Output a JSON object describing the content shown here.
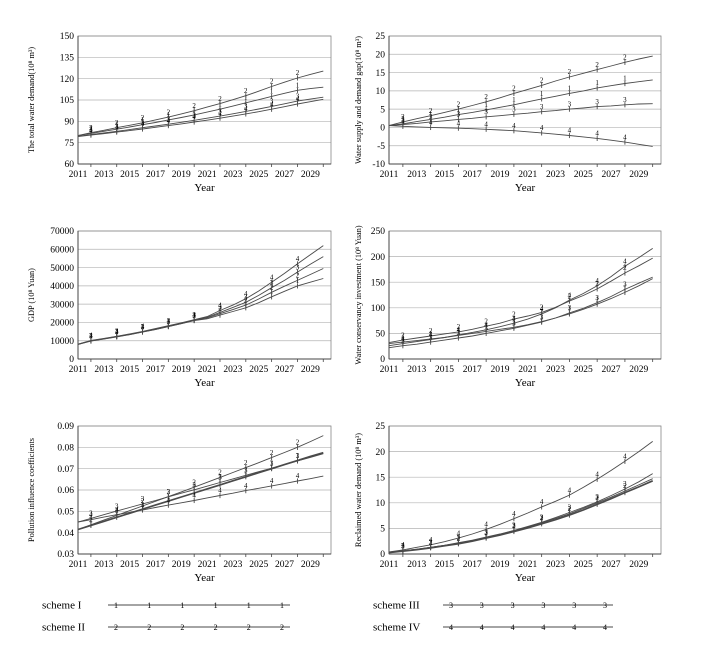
{
  "figure": {
    "xlabel": "Year",
    "legend": [
      {
        "label": "scheme I",
        "digit": "1"
      },
      {
        "label": "scheme II",
        "digit": "2"
      },
      {
        "label": "scheme III",
        "digit": "3"
      },
      {
        "label": "scheme IV",
        "digit": "4"
      }
    ],
    "colors": {
      "line": "#4a4a4a",
      "grid": "#b3b3b3",
      "border": "#888888",
      "text": "#000000"
    }
  },
  "chart_data": [
    {
      "type": "line",
      "name": "total-water-demand",
      "ylabel": "The total water demand(10⁸ m³)",
      "xlabel": "Year",
      "ylim": [
        60,
        150
      ],
      "ytick_step": 15,
      "ydecimals": 0,
      "x": [
        2011,
        2012,
        2013,
        2014,
        2015,
        2016,
        2017,
        2018,
        2019,
        2020,
        2021,
        2022,
        2023,
        2024,
        2025,
        2026,
        2027,
        2028,
        2029,
        2030
      ],
      "xticks": [
        2011,
        2013,
        2015,
        2017,
        2019,
        2021,
        2023,
        2025,
        2027,
        2029
      ],
      "label_years": [
        2012,
        2014,
        2016,
        2018,
        2020,
        2022,
        2024,
        2026,
        2028
      ],
      "grid": true,
      "series": [
        {
          "name": "scheme I",
          "digit": "1",
          "bold": false,
          "values": [
            80,
            81.5,
            83,
            84.5,
            86,
            87.6,
            89.2,
            91,
            92.7,
            94.5,
            96.5,
            98.5,
            100.7,
            103,
            105.2,
            107.5,
            109.7,
            111.8,
            113,
            114
          ]
        },
        {
          "name": "scheme II",
          "digit": "2",
          "bold": false,
          "values": [
            80,
            82,
            83.7,
            85.5,
            87.2,
            89,
            91,
            93,
            95.2,
            97.5,
            100,
            102.5,
            105.2,
            108,
            111.2,
            114.5,
            117.5,
            120.5,
            123,
            125.3
          ]
        },
        {
          "name": "scheme III",
          "digit": "3",
          "bold": false,
          "values": [
            79.5,
            80.7,
            81.8,
            83,
            84.2,
            85.5,
            86.7,
            88,
            89.3,
            90.7,
            92.2,
            93.7,
            95.3,
            97,
            98.7,
            100.5,
            102.3,
            104.2,
            105.6,
            107
          ]
        },
        {
          "name": "scheme IV",
          "digit": "4",
          "bold": false,
          "values": [
            79.3,
            80.3,
            81.3,
            82.4,
            83.5,
            84.6,
            85.8,
            87,
            88.2,
            89.5,
            90.8,
            92.2,
            93.7,
            95.2,
            96.8,
            98.5,
            100.3,
            102.2,
            103.8,
            105.5
          ]
        }
      ]
    },
    {
      "type": "line",
      "name": "water-supply-demand-gap",
      "ylabel": "Water supply and demand gap(10⁸ m³)",
      "xlabel": "Year",
      "ylim": [
        -10,
        25
      ],
      "ytick_step": 5,
      "ydecimals": 0,
      "x": [
        2011,
        2012,
        2013,
        2014,
        2015,
        2016,
        2017,
        2018,
        2019,
        2020,
        2021,
        2022,
        2023,
        2024,
        2025,
        2026,
        2027,
        2028,
        2029,
        2030
      ],
      "xticks": [
        2011,
        2013,
        2015,
        2017,
        2019,
        2021,
        2023,
        2025,
        2027,
        2029
      ],
      "label_years": [
        2012,
        2014,
        2016,
        2018,
        2020,
        2022,
        2024,
        2026,
        2028
      ],
      "grid": true,
      "series": [
        {
          "name": "scheme I",
          "digit": "1",
          "bold": false,
          "values": [
            0.5,
            1,
            1.6,
            2.2,
            2.8,
            3.5,
            4.1,
            4.8,
            5.5,
            6.2,
            7,
            7.8,
            8.5,
            9.3,
            10,
            10.8,
            11.4,
            12,
            12.5,
            13
          ]
        },
        {
          "name": "scheme II",
          "digit": "2",
          "bold": false,
          "values": [
            0.5,
            1.5,
            2.4,
            3.2,
            4.1,
            5,
            6,
            7,
            8.1,
            9.3,
            10.4,
            11.5,
            12.7,
            13.8,
            14.8,
            15.8,
            16.8,
            17.8,
            18.7,
            19.5
          ]
        },
        {
          "name": "scheme III",
          "digit": "3",
          "bold": false,
          "values": [
            0.5,
            0.8,
            1.1,
            1.5,
            1.8,
            2.2,
            2.5,
            2.9,
            3.2,
            3.6,
            3.9,
            4.3,
            4.6,
            5,
            5.3,
            5.7,
            5.9,
            6.2,
            6.4,
            6.5
          ]
        },
        {
          "name": "scheme IV",
          "digit": "4",
          "bold": false,
          "values": [
            0.5,
            0.3,
            0.15,
            0,
            -0.1,
            -0.2,
            -0.35,
            -0.5,
            -0.7,
            -0.9,
            -1.2,
            -1.5,
            -1.85,
            -2.2,
            -2.6,
            -3,
            -3.5,
            -4,
            -4.6,
            -5.2
          ]
        }
      ]
    },
    {
      "type": "line",
      "name": "gdp",
      "ylabel": "GDP (10⁸ Yuan)",
      "xlabel": "Year",
      "ylim": [
        0,
        70000
      ],
      "ytick_step": 10000,
      "ydecimals": 0,
      "x": [
        2011,
        2012,
        2013,
        2014,
        2015,
        2016,
        2017,
        2018,
        2019,
        2020,
        2021,
        2022,
        2023,
        2024,
        2025,
        2026,
        2027,
        2028,
        2029,
        2030
      ],
      "xticks": [
        2011,
        2013,
        2015,
        2017,
        2019,
        2021,
        2023,
        2025,
        2027,
        2029
      ],
      "label_years": [
        2012,
        2014,
        2016,
        2018,
        2020,
        2022,
        2024,
        2026,
        2028
      ],
      "grid": true,
      "series": [
        {
          "name": "scheme I",
          "digit": "1",
          "bold": false,
          "values": [
            8000,
            9800,
            10900,
            12100,
            13300,
            14700,
            16100,
            17700,
            19300,
            21000,
            22000,
            24000,
            26000,
            28000,
            30800,
            34000,
            37000,
            40000,
            42000,
            44000
          ]
        },
        {
          "name": "scheme II",
          "digit": "2",
          "bold": false,
          "values": [
            8000,
            9900,
            11000,
            12200,
            13400,
            14800,
            16200,
            17800,
            19400,
            21100,
            22400,
            24800,
            27000,
            29500,
            32800,
            36500,
            39800,
            43000,
            46200,
            49500
          ]
        },
        {
          "name": "scheme III",
          "digit": "3",
          "bold": false,
          "values": [
            8100,
            10000,
            11100,
            12300,
            13500,
            14900,
            16400,
            18000,
            19600,
            21300,
            22800,
            25500,
            28200,
            31000,
            34800,
            39000,
            43000,
            47500,
            51800,
            56000
          ]
        },
        {
          "name": "scheme IV",
          "digit": "4",
          "bold": false,
          "values": [
            8100,
            10100,
            11200,
            12400,
            13700,
            15100,
            16600,
            18200,
            19800,
            21500,
            23200,
            26500,
            29500,
            33000,
            37200,
            42000,
            46800,
            52000,
            57000,
            62000
          ]
        }
      ]
    },
    {
      "type": "line",
      "name": "water-conservancy-investment",
      "ylabel": "Water conservancy investment (10⁸ Yuan)",
      "xlabel": "Year",
      "ylim": [
        0,
        250
      ],
      "ytick_step": 50,
      "ydecimals": 0,
      "x": [
        2011,
        2012,
        2013,
        2014,
        2015,
        2016,
        2017,
        2018,
        2019,
        2020,
        2021,
        2022,
        2023,
        2024,
        2025,
        2026,
        2027,
        2028,
        2029,
        2030
      ],
      "xticks": [
        2011,
        2013,
        2015,
        2017,
        2019,
        2021,
        2023,
        2025,
        2027,
        2029
      ],
      "label_years": [
        2012,
        2014,
        2016,
        2018,
        2020,
        2022,
        2024,
        2026,
        2028
      ],
      "grid": true,
      "series": [
        {
          "name": "scheme I",
          "digit": "1",
          "bold": false,
          "values": [
            30,
            33,
            36,
            39,
            42,
            46,
            50,
            54,
            58,
            62,
            67,
            73,
            80,
            88,
            97,
            107,
            118,
            130,
            143,
            157
          ]
        },
        {
          "name": "scheme II",
          "digit": "2",
          "bold": false,
          "values": [
            32,
            37,
            41,
            45,
            49,
            53,
            58,
            64,
            70,
            78,
            84,
            91,
            101,
            113,
            124,
            137,
            152,
            168,
            182,
            197
          ]
        },
        {
          "name": "scheme III",
          "digit": "3",
          "bold": false,
          "values": [
            22,
            26,
            29,
            33,
            37,
            41,
            45,
            50,
            55,
            60,
            66,
            72,
            80,
            90,
            99,
            110,
            122,
            136,
            148,
            160
          ]
        },
        {
          "name": "scheme IV",
          "digit": "4",
          "bold": false,
          "values": [
            26,
            30,
            34,
            38,
            42,
            47,
            52,
            57,
            63,
            70,
            78,
            88,
            100,
            115,
            128,
            143,
            161,
            181,
            198,
            216
          ]
        }
      ]
    },
    {
      "type": "line",
      "name": "pollution-influence-coefficients",
      "ylabel": "Pollution influence coefficients",
      "xlabel": "Year",
      "ylim": [
        0.03,
        0.09
      ],
      "ytick_step": 0.01,
      "ydecimals": 2,
      "x": [
        2011,
        2012,
        2013,
        2014,
        2015,
        2016,
        2017,
        2018,
        2019,
        2020,
        2021,
        2022,
        2023,
        2024,
        2025,
        2026,
        2027,
        2028,
        2029,
        2030
      ],
      "xticks": [
        2011,
        2013,
        2015,
        2017,
        2019,
        2021,
        2023,
        2025,
        2027,
        2029
      ],
      "label_years": [
        2012,
        2014,
        2016,
        2018,
        2020,
        2022,
        2024,
        2026,
        2028
      ],
      "grid": true,
      "series": [
        {
          "name": "scheme I",
          "digit": "1",
          "bold": true,
          "values": [
            0.0415,
            0.0434,
            0.0453,
            0.0472,
            0.0491,
            0.051,
            0.0529,
            0.0548,
            0.0567,
            0.0586,
            0.0605,
            0.0624,
            0.0643,
            0.0662,
            0.0681,
            0.07,
            0.0719,
            0.0738,
            0.0757,
            0.0775
          ]
        },
        {
          "name": "scheme II",
          "digit": "2",
          "bold": false,
          "values": [
            0.0415,
            0.0437,
            0.0459,
            0.0481,
            0.0503,
            0.0525,
            0.0547,
            0.0569,
            0.0591,
            0.0613,
            0.0636,
            0.0659,
            0.0682,
            0.0705,
            0.0728,
            0.0752,
            0.0776,
            0.08,
            0.0827,
            0.0855
          ]
        },
        {
          "name": "scheme III",
          "digit": "3",
          "bold": false,
          "values": [
            0.045,
            0.0467,
            0.0484,
            0.0501,
            0.0518,
            0.0535,
            0.0551,
            0.0568,
            0.0585,
            0.0601,
            0.0618,
            0.0635,
            0.0652,
            0.0669,
            0.0686,
            0.0702,
            0.0719,
            0.0736,
            0.0753,
            0.077
          ]
        },
        {
          "name": "scheme IV",
          "digit": "4",
          "bold": false,
          "values": [
            0.045,
            0.0461,
            0.0473,
            0.0484,
            0.0495,
            0.0506,
            0.0518,
            0.0529,
            0.054,
            0.0551,
            0.0563,
            0.0574,
            0.0585,
            0.0597,
            0.0608,
            0.0619,
            0.063,
            0.0642,
            0.0653,
            0.0665
          ]
        }
      ]
    },
    {
      "type": "line",
      "name": "reclaimed-water-demand",
      "ylabel": "Reclaimed water demand (10⁸ m³)",
      "xlabel": "Year",
      "ylim": [
        0,
        25
      ],
      "ytick_step": 5,
      "ydecimals": 0,
      "x": [
        2011,
        2012,
        2013,
        2014,
        2015,
        2016,
        2017,
        2018,
        2019,
        2020,
        2021,
        2022,
        2023,
        2024,
        2025,
        2026,
        2027,
        2028,
        2029,
        2030
      ],
      "xticks": [
        2011,
        2013,
        2015,
        2017,
        2019,
        2021,
        2023,
        2025,
        2027,
        2029
      ],
      "label_years": [
        2012,
        2014,
        2016,
        2018,
        2020,
        2022,
        2024,
        2026,
        2028
      ],
      "grid": true,
      "series": [
        {
          "name": "scheme I",
          "digit": "1",
          "bold": true,
          "values": [
            0.3,
            0.55,
            0.85,
            1.2,
            1.6,
            2,
            2.5,
            3.1,
            3.7,
            4.4,
            5.1,
            5.9,
            6.7,
            7.6,
            8.6,
            9.7,
            10.8,
            12,
            13.1,
            14.3
          ]
        },
        {
          "name": "scheme II",
          "digit": "2",
          "bold": false,
          "values": [
            0.35,
            0.62,
            0.93,
            1.3,
            1.7,
            2.1,
            2.6,
            3.2,
            3.85,
            4.55,
            5.3,
            6.1,
            6.95,
            7.85,
            8.9,
            10,
            11.1,
            12.3,
            13.5,
            14.7
          ]
        },
        {
          "name": "scheme III",
          "digit": "3",
          "bold": false,
          "values": [
            0.3,
            0.6,
            0.9,
            1.3,
            1.7,
            2.2,
            2.7,
            3.3,
            3.9,
            4.6,
            5.4,
            6.2,
            7.1,
            8.1,
            9.1,
            10.2,
            11.4,
            12.7,
            14.1,
            15.7
          ]
        },
        {
          "name": "scheme IV",
          "digit": "4",
          "bold": false,
          "values": [
            0.4,
            0.8,
            1.3,
            1.8,
            2.4,
            3.1,
            3.9,
            4.8,
            5.8,
            6.9,
            8,
            9.2,
            10.3,
            11.5,
            13,
            14.6,
            16.3,
            18.1,
            20,
            22
          ]
        }
      ]
    }
  ]
}
